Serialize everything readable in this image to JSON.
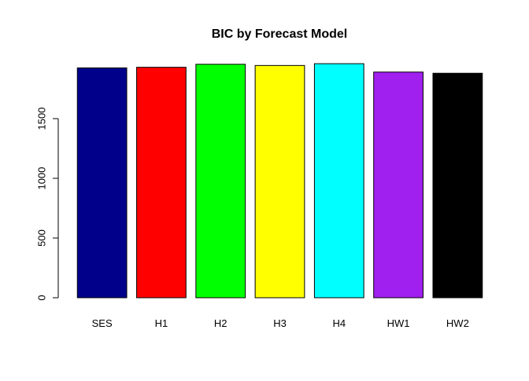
{
  "chart_data": {
    "type": "bar",
    "title": "BIC by Forecast Model",
    "xlabel": "",
    "ylabel": "",
    "categories": [
      "SES",
      "H1",
      "H2",
      "H3",
      "H4",
      "HW1",
      "HW2"
    ],
    "values": [
      1925,
      1930,
      1955,
      1945,
      1960,
      1890,
      1880
    ],
    "colors": [
      "#00008B",
      "#FF0000",
      "#00FF00",
      "#FFFF00",
      "#00FFFF",
      "#A020F0",
      "#000000"
    ],
    "ylim": [
      0,
      1960
    ],
    "yticks": [
      0,
      500,
      1000,
      1500
    ],
    "ytick_labels": [
      "0",
      "500",
      "1000",
      "1500"
    ],
    "grid": false,
    "legend": "none"
  }
}
